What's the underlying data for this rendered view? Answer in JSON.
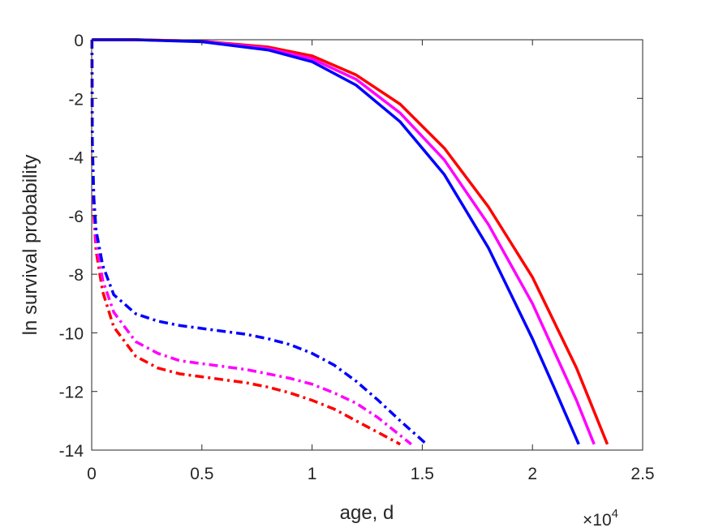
{
  "chart_data": {
    "type": "line",
    "xlabel": "age, d",
    "ylabel": "ln survival probability",
    "x_exponent": {
      "base": "10",
      "power": "4"
    },
    "xlim": [
      0,
      2.5
    ],
    "ylim": [
      -14,
      0
    ],
    "xticks": [
      "0",
      "0.5",
      "1",
      "1.5",
      "2",
      "2.5"
    ],
    "yticks": [
      "0",
      "-2",
      "-4",
      "-6",
      "-8",
      "-10",
      "-12",
      "-14"
    ],
    "grid": false,
    "legend": "none",
    "series": [
      {
        "color": "#ff0000",
        "style": "solid",
        "x": [
          0.001,
          0.2,
          0.5,
          0.8,
          1.0,
          1.2,
          1.4,
          1.6,
          1.8,
          2.0,
          2.2,
          2.34
        ],
        "y": [
          0,
          0,
          -0.05,
          -0.25,
          -0.55,
          -1.2,
          -2.2,
          -3.7,
          -5.7,
          -8.1,
          -11.2,
          -13.8
        ]
      },
      {
        "color": "#ff00ff",
        "style": "solid",
        "x": [
          0.001,
          0.2,
          0.5,
          0.8,
          1.0,
          1.2,
          1.4,
          1.6,
          1.8,
          2.0,
          2.2,
          2.28
        ],
        "y": [
          0,
          0,
          -0.05,
          -0.3,
          -0.65,
          -1.35,
          -2.5,
          -4.1,
          -6.3,
          -9.0,
          -12.3,
          -13.8
        ]
      },
      {
        "color": "#0000ff",
        "style": "solid",
        "x": [
          0.001,
          0.2,
          0.5,
          0.8,
          1.0,
          1.2,
          1.4,
          1.6,
          1.8,
          2.0,
          2.1,
          2.21
        ],
        "y": [
          0,
          0,
          -0.07,
          -0.35,
          -0.75,
          -1.55,
          -2.8,
          -4.6,
          -7.1,
          -10.2,
          -11.9,
          -13.8
        ]
      },
      {
        "color": "#ff0000",
        "style": "dashdot",
        "x": [
          0.001,
          0.003,
          0.01,
          0.02,
          0.05,
          0.1,
          0.2,
          0.3,
          0.4,
          0.5,
          0.6,
          0.7,
          0.8,
          0.9,
          1.0,
          1.1,
          1.2,
          1.3,
          1.4
        ],
        "y": [
          0,
          -4.0,
          -6.0,
          -7.2,
          -8.6,
          -9.8,
          -10.8,
          -11.2,
          -11.4,
          -11.5,
          -11.6,
          -11.7,
          -11.85,
          -12.05,
          -12.3,
          -12.6,
          -13.0,
          -13.4,
          -13.8
        ]
      },
      {
        "color": "#ff00ff",
        "style": "dashdot",
        "x": [
          0.001,
          0.003,
          0.01,
          0.02,
          0.05,
          0.1,
          0.2,
          0.3,
          0.4,
          0.5,
          0.6,
          0.7,
          0.8,
          0.9,
          1.0,
          1.1,
          1.2,
          1.3,
          1.45
        ],
        "y": [
          0,
          -3.8,
          -5.8,
          -6.9,
          -8.2,
          -9.3,
          -10.3,
          -10.7,
          -10.95,
          -11.05,
          -11.15,
          -11.25,
          -11.4,
          -11.55,
          -11.75,
          -12.05,
          -12.4,
          -12.9,
          -13.8
        ]
      },
      {
        "color": "#0000ff",
        "style": "dashdot",
        "x": [
          0.001,
          0.003,
          0.01,
          0.02,
          0.05,
          0.1,
          0.2,
          0.3,
          0.4,
          0.5,
          0.6,
          0.7,
          0.8,
          0.9,
          1.0,
          1.1,
          1.2,
          1.3,
          1.4,
          1.52
        ],
        "y": [
          0,
          -3.5,
          -5.4,
          -6.5,
          -7.7,
          -8.7,
          -9.35,
          -9.6,
          -9.75,
          -9.85,
          -9.95,
          -10.05,
          -10.2,
          -10.4,
          -10.7,
          -11.1,
          -11.65,
          -12.3,
          -13.0,
          -13.8
        ]
      }
    ]
  }
}
